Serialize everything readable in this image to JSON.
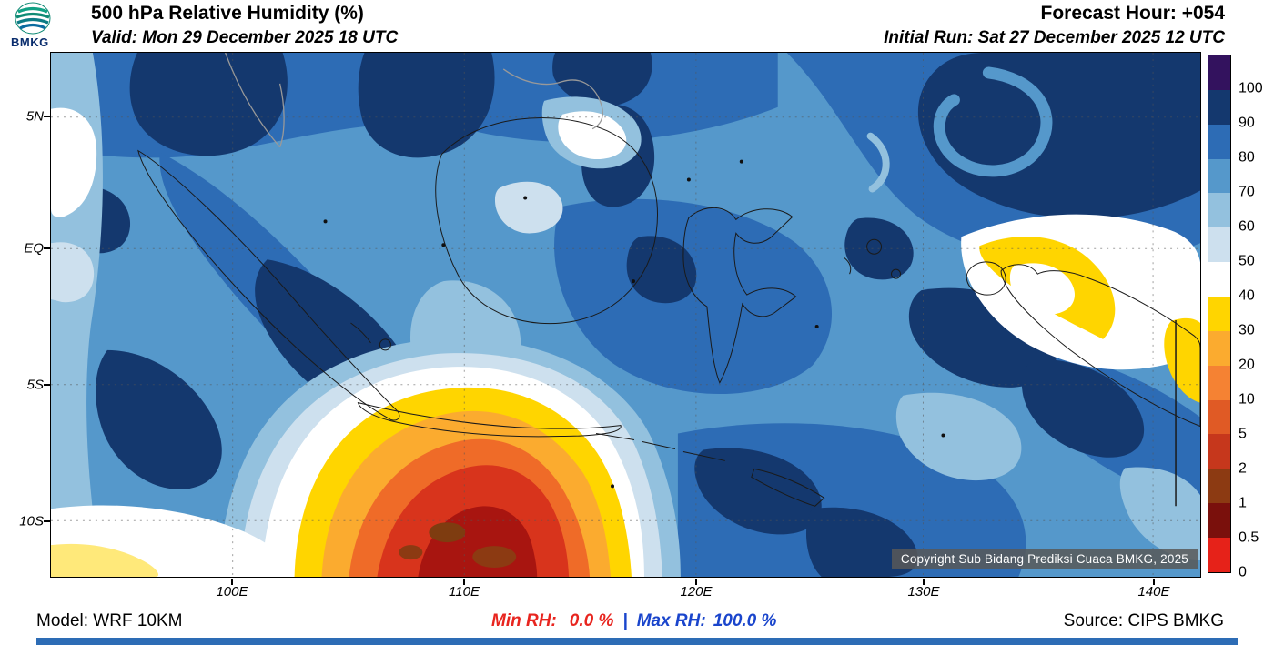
{
  "header": {
    "logo_text": "BMKG",
    "title": "500 hPa Relative Humidity (%)",
    "forecast_hour": "Forecast Hour: +054",
    "valid": "Valid: Mon 29 December 2025 18 UTC",
    "initial_run": "Initial Run: Sat 27 December 2025 12 UTC"
  },
  "map": {
    "lat_labels": [
      "5N",
      "EQ",
      "5S",
      "10S"
    ],
    "lon_labels": [
      "100E",
      "110E",
      "120E",
      "130E",
      "140E"
    ],
    "copyright": "Copyright Sub Bidang Prediksi Cuaca BMKG, 2025"
  },
  "legend": {
    "tick_values": [
      "100",
      "90",
      "80",
      "70",
      "60",
      "50",
      "40",
      "30",
      "20",
      "10",
      "5",
      "2",
      "1",
      "0.5",
      "0"
    ],
    "segment_colors": [
      "#33125e",
      "#14386e",
      "#2d6cb5",
      "#5598cb",
      "#93c1de",
      "#cde0ee",
      "#ffffff",
      "#ffd500",
      "#fbab2f",
      "#f58233",
      "#e05a25",
      "#c6371c",
      "#8c3a12",
      "#7a100c",
      "#e62219"
    ]
  },
  "footer": {
    "model": "Model: WRF 10KM",
    "min_label": "Min RH:",
    "min_value": "0.0 %",
    "separator": "|",
    "max_label": "Max RH:",
    "max_value": "100.0 %",
    "source": "Source: CIPS BMKG"
  },
  "colors": {
    "min_rh_color": "#e8251f",
    "max_rh_color": "#1a45cc",
    "bottom_bar": "#2d6cb5",
    "map_base": "#5598cb"
  }
}
